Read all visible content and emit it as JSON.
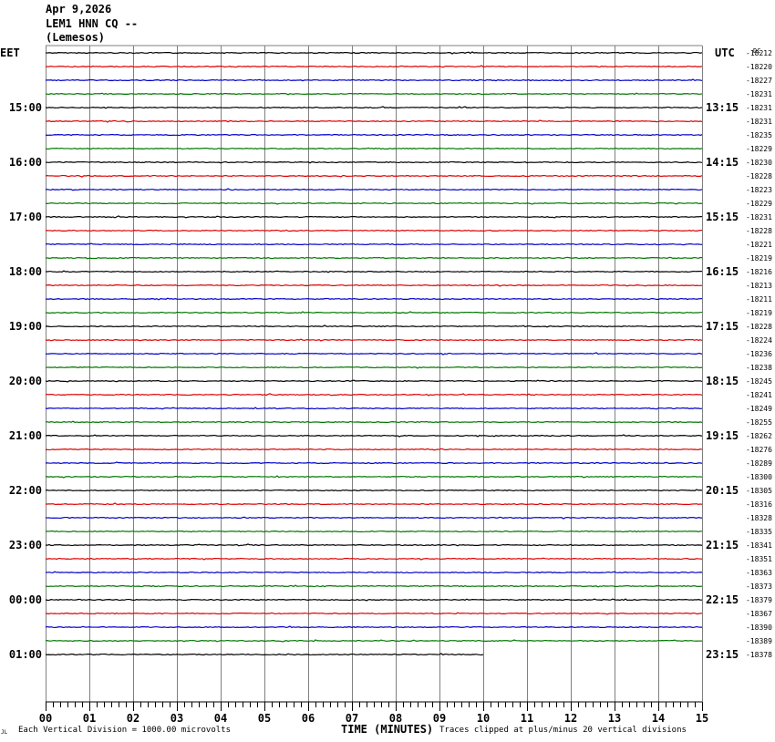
{
  "header": {
    "date": "Apr 9,2026",
    "station": "LEM1 HNN CQ --",
    "location": "(Lemesos)"
  },
  "footer": {
    "logo_text": "JL",
    "scale_note": "Each Vertical Division = 1000.00 microvolts",
    "axis_title": "TIME (MINUTES)",
    "clip_note": "Traces clipped at plus/minus 20 vertical divisions"
  },
  "chart_data": {
    "type": "line",
    "title": "",
    "xlabel": "TIME (MINUTES)",
    "xlim": [
      0,
      15
    ],
    "x_ticks": [
      "00",
      "01",
      "02",
      "03",
      "04",
      "05",
      "06",
      "07",
      "08",
      "09",
      "10",
      "11",
      "12",
      "13",
      "14",
      "15"
    ],
    "left_axis_label": "EET",
    "right_axis_label": "UTC",
    "dc_label": "DC",
    "left_hour_labels": [
      "15:00",
      "16:00",
      "17:00",
      "18:00",
      "19:00",
      "20:00",
      "21:00",
      "22:00",
      "23:00",
      "00:00",
      "01:00"
    ],
    "right_hour_labels": [
      "13:15",
      "14:15",
      "15:15",
      "16:15",
      "17:15",
      "18:15",
      "19:15",
      "20:15",
      "21:15",
      "22:15",
      "23:15"
    ],
    "trace_colors": [
      "#000000",
      "#dd0000",
      "#0000cc",
      "#007700"
    ],
    "grid_color": "#808080",
    "traces_count": 45,
    "last_trace_end_minute": 10,
    "dc_offsets": [
      "-18212",
      "-18220",
      "-18227",
      "-18231",
      "-18231",
      "-18231",
      "-18235",
      "-18229",
      "-18230",
      "-18228",
      "-18223",
      "-18229",
      "-18231",
      "-18228",
      "-18221",
      "-18219",
      "-18216",
      "-18213",
      "-18211",
      "-18219",
      "-18228",
      "-18224",
      "-18236",
      "-18238",
      "-18245",
      "-18241",
      "-18249",
      "-18255",
      "-18262",
      "-18276",
      "-18289",
      "-18300",
      "-18305",
      "-18316",
      "-18328",
      "-18335",
      "-18341",
      "-18351",
      "-18363",
      "-18373",
      "-18379",
      "-18367",
      "-18390",
      "-18389",
      "-18378"
    ]
  }
}
